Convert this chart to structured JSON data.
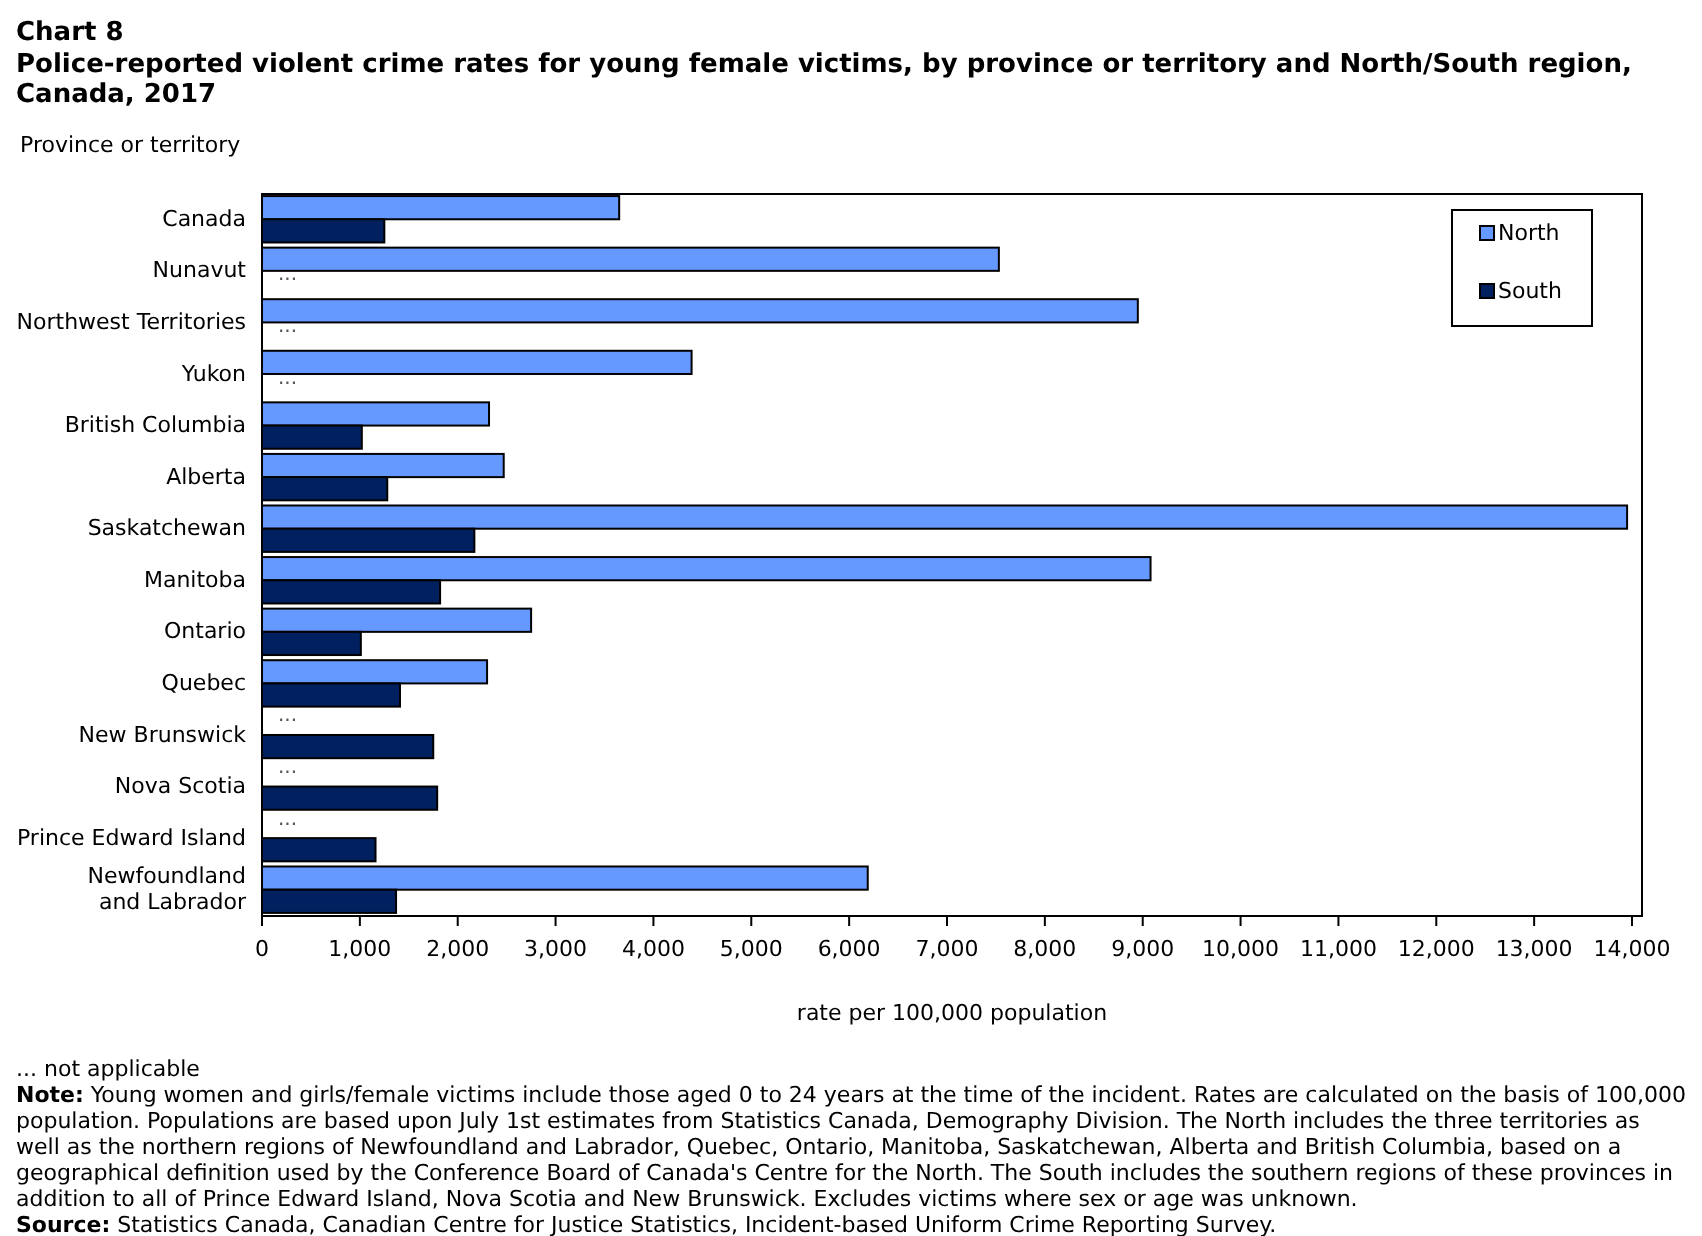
{
  "chart_data": {
    "type": "bar",
    "orientation": "horizontal",
    "title": "Chart 8",
    "subtitle": "Police-reported violent crime rates for young female victims, by province or territory and North/South region, Canada, 2017",
    "ylabel": "Province or territory",
    "xlabel": "rate per 100,000 population",
    "categories": [
      "Canada",
      "Nunavut",
      "Northwest Territories",
      "Yukon",
      "British Columbia",
      "Alberta",
      "Saskatchewan",
      "Manitoba",
      "Ontario",
      "Quebec",
      "New Brunswick",
      "Nova Scotia",
      "Prince Edward Island",
      "Newfoundland\nand Labrador"
    ],
    "series": [
      {
        "name": "North",
        "color": "#6699ff",
        "values": [
          3650,
          7530,
          8950,
          4390,
          2320,
          2470,
          13950,
          9080,
          2750,
          2300,
          null,
          null,
          null,
          6190
        ],
        "value_labels": [
          null,
          null,
          null,
          null,
          null,
          null,
          null,
          null,
          null,
          null,
          "...",
          "...",
          "...",
          null
        ]
      },
      {
        "name": "South",
        "color": "#002060",
        "values": [
          1250,
          null,
          null,
          null,
          1020,
          1280,
          2170,
          1820,
          1010,
          1410,
          1750,
          1790,
          1160,
          1370
        ],
        "value_labels": [
          null,
          "...",
          "...",
          "...",
          null,
          null,
          null,
          null,
          null,
          null,
          null,
          null,
          null,
          null
        ]
      }
    ],
    "xlim": [
      0,
      14000
    ],
    "xticks": [
      {
        "value": 0,
        "label": "0"
      },
      {
        "value": 1000,
        "label": "1,000"
      },
      {
        "value": 2000,
        "label": "2,000"
      },
      {
        "value": 3000,
        "label": "3,000"
      },
      {
        "value": 4000,
        "label": "4,000"
      },
      {
        "value": 5000,
        "label": "5,000"
      },
      {
        "value": 6000,
        "label": "6,000"
      },
      {
        "value": 7000,
        "label": "7,000"
      },
      {
        "value": 8000,
        "label": "8,000"
      },
      {
        "value": 9000,
        "label": "9,000"
      },
      {
        "value": 10000,
        "label": "10,000"
      },
      {
        "value": 11000,
        "label": "11,000"
      },
      {
        "value": 12000,
        "label": "12,000"
      },
      {
        "value": 13000,
        "label": "13,000"
      },
      {
        "value": 14000,
        "label": "14,000"
      }
    ],
    "grid": false,
    "legend": "top right",
    "annotations": [
      "... not applicable",
      "Note: Young women and girls/female victims include those aged 0 to 24 years at the time of the incident. Rates are calculated on the basis of 100,000 population. Populations are based upon July 1st estimates from Statistics Canada, Demography Division. The North includes the three territories as well as the northern regions of Newfoundland and Labrador, Quebec, Ontario, Manitoba, Saskatchewan, Alberta and British Columbia, based on a geographical definition used by the Conference Board of Canada's Centre for the North. The South includes the southern regions of these provinces in addition to all of Prince Edward Island, Nova Scotia and New Brunswick. Excludes victims where sex or age was unknown.",
      "Source: Statistics Canada, Canadian Centre for Justice Statistics, Incident-based Uniform Crime Reporting Survey."
    ]
  }
}
